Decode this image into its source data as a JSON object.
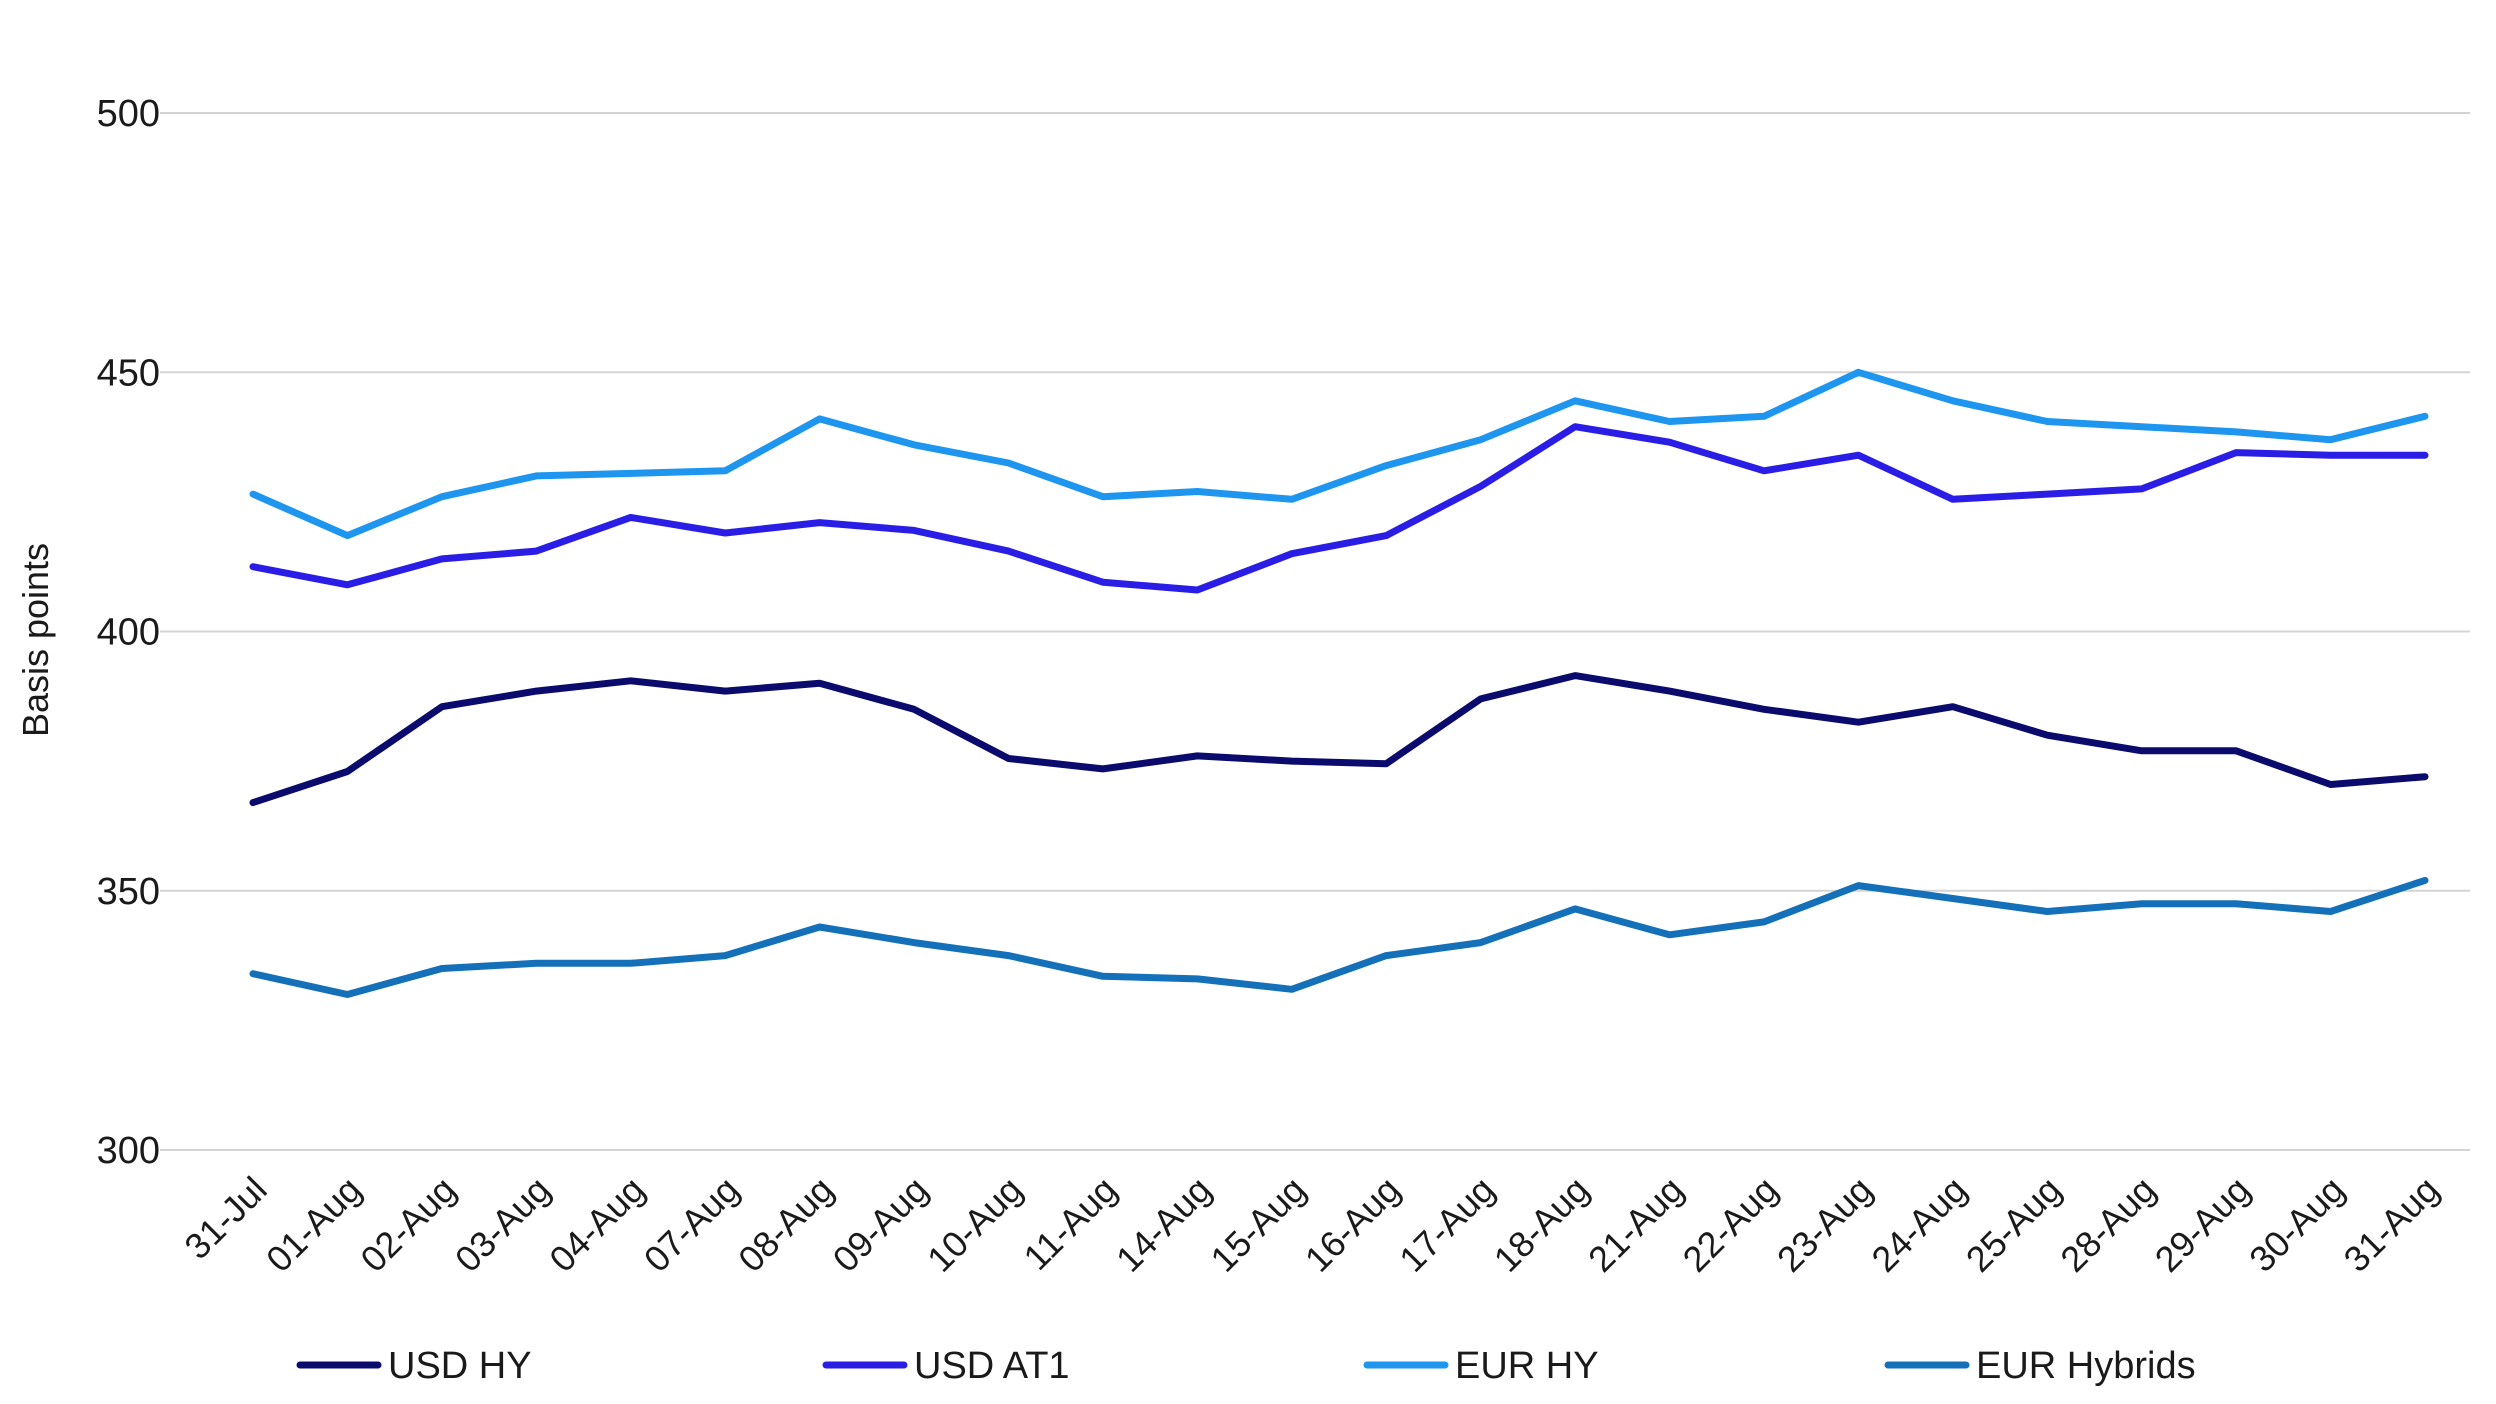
{
  "chart_data": {
    "type": "line",
    "ylabel": "Basis points",
    "xlabel": "",
    "ylim": [
      300,
      500
    ],
    "yticks": [
      "300",
      "350",
      "400",
      "450",
      "500"
    ],
    "grid": true,
    "legend_position": "bottom",
    "categories": [
      "31-Jul",
      "01-Aug",
      "02-Aug",
      "03-Aug",
      "04-Aug",
      "07-Aug",
      "08-Aug",
      "09-Aug",
      "10-Aug",
      "11-Aug",
      "14-Aug",
      "15-Aug",
      "16-Aug",
      "17-Aug",
      "18-Aug",
      "21-Aug",
      "22-Aug",
      "23-Aug",
      "24-Aug",
      "25-Aug",
      "28-Aug",
      "29-Aug",
      "30-Aug",
      "31-Aug"
    ],
    "series": [
      {
        "name": "USD HY",
        "color": "#0b0b6e",
        "values": [
          367,
          373,
          385.5,
          388.5,
          390.5,
          388.5,
          390,
          385,
          375.5,
          373.5,
          376,
          375,
          374.5,
          387,
          391.5,
          388.5,
          385,
          382.5,
          385.5,
          380,
          377,
          377,
          370.5,
          372
        ]
      },
      {
        "name": "USD AT1",
        "color": "#2a1ee6",
        "values": [
          412.5,
          409,
          414,
          415.5,
          422,
          419,
          421,
          419.5,
          415.5,
          409.5,
          408,
          415,
          418.5,
          428,
          439.5,
          436.5,
          431,
          434,
          425.5,
          426.5,
          427.5,
          434.5,
          434,
          434
        ]
      },
      {
        "name": "EUR HY",
        "color": "#1e96f0",
        "values": [
          426.5,
          418.5,
          426,
          430,
          430.5,
          431,
          441,
          436,
          432.5,
          426,
          427,
          425.5,
          432,
          437,
          444.5,
          440.5,
          441.5,
          450,
          444.5,
          440.5,
          439.5,
          438.5,
          437,
          441.5
        ]
      },
      {
        "name": "EUR Hybrids",
        "color": "#1470b8",
        "values": [
          334,
          330,
          335,
          336,
          336,
          337.5,
          343,
          340,
          337.5,
          333.5,
          333,
          331,
          337.5,
          340,
          346.5,
          341.5,
          344,
          351,
          348.5,
          346,
          347.5,
          347.5,
          346,
          352
        ]
      }
    ]
  }
}
